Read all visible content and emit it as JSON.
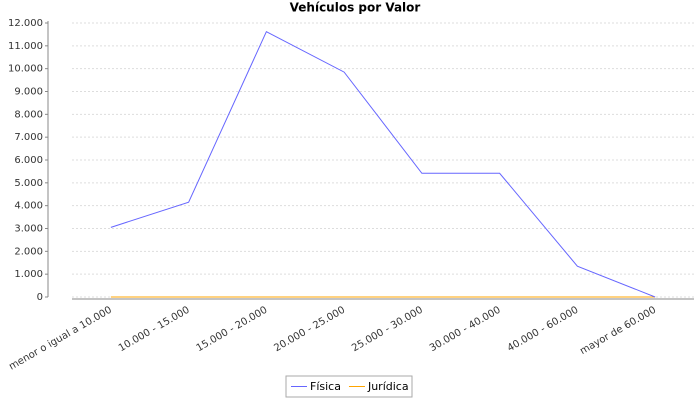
{
  "chart_data": {
    "type": "line",
    "title": "Vehículos por Valor",
    "categories": [
      "menor o igual a 10.000",
      "10.000 - 15.000",
      "15.000 - 20.000",
      "20.000 - 25.000",
      "25.000 - 30.000",
      "30.000 - 40.000",
      "40.000 - 60.000",
      "mayor de 60.000"
    ],
    "series": [
      {
        "name": "Física",
        "color": "#6666ff",
        "values": [
          3050,
          4150,
          11620,
          9850,
          5420,
          5420,
          1350,
          0
        ]
      },
      {
        "name": "Jurídica",
        "color": "#ffa500",
        "values": [
          0,
          0,
          0,
          0,
          0,
          0,
          0,
          0
        ]
      }
    ],
    "ylim": [
      0,
      12000
    ],
    "yticks": [
      0,
      {
        "value": 1000,
        "label": "1.000"
      },
      {
        "value": 2000,
        "label": "2.000"
      },
      {
        "value": 3000,
        "label": "3.000"
      },
      {
        "value": 4000,
        "label": "4.000"
      },
      {
        "value": 5000,
        "label": "5.000"
      },
      {
        "value": 6000,
        "label": "6.000"
      },
      {
        "value": 7000,
        "label": "7.000"
      },
      {
        "value": 8000,
        "label": "8.000"
      },
      {
        "value": 9000,
        "label": "9.000"
      },
      {
        "value": 10000,
        "label": "10.000"
      },
      {
        "value": 11000,
        "label": "11.000"
      },
      {
        "value": 12000,
        "label": "12.000"
      }
    ],
    "grid": true
  }
}
